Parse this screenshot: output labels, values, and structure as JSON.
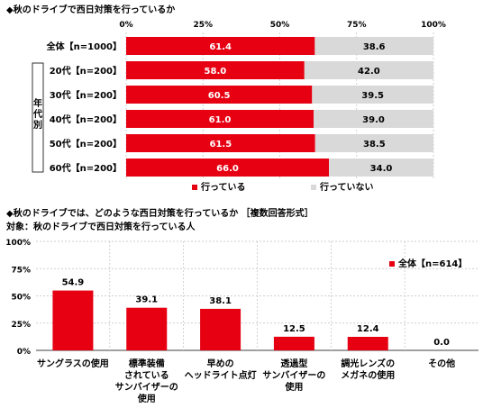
{
  "colors": {
    "red": "#e60012",
    "gray": "#d9d9d9",
    "grid": "#bfbfbf"
  },
  "chart_data": [
    {
      "type": "bar",
      "orientation": "horizontal",
      "stacked": true,
      "title": "◆秋のドライブで西日対策を行っているか",
      "categories": [
        "全体【n=1000】",
        "20代【n=200】",
        "30代【n=200】",
        "40代【n=200】",
        "50代【n=200】",
        "60代【n=200】"
      ],
      "group_label": "年代別",
      "xlim": [
        0,
        100
      ],
      "ticks": [
        "0%",
        "25%",
        "50%",
        "75%",
        "100%"
      ],
      "tick_values": [
        0,
        25,
        50,
        75,
        100
      ],
      "series": [
        {
          "name": "行っている",
          "values": [
            61.4,
            58.0,
            60.5,
            61.0,
            61.5,
            66.0
          ]
        },
        {
          "name": "行っていない",
          "values": [
            38.6,
            42.0,
            39.5,
            39.0,
            38.5,
            34.0
          ]
        }
      ],
      "value_labels": [
        [
          "61.4",
          "58.0",
          "60.5",
          "61.0",
          "61.5",
          "66.0"
        ],
        [
          "38.6",
          "42.0",
          "39.5",
          "39.0",
          "38.5",
          "34.0"
        ]
      ],
      "legend_position": "bottom",
      "grid": true
    },
    {
      "type": "bar",
      "title": "◆秋のドライブでは、どのような西日対策を行っているか ［複数回答形式］",
      "subtitle": "対象：秋のドライブで西日対策を行っている人",
      "categories": [
        "サングラスの使用",
        "標準装備\nされている\nサンバイザーの\n使用",
        "早めの\nヘッドライト点灯",
        "透過型\nサンバイザーの\n使用",
        "調光レンズの\nメガネの使用",
        "その他"
      ],
      "series": [
        {
          "name": "全体【n=614】",
          "values": [
            54.9,
            39.1,
            38.1,
            12.5,
            12.4,
            0.0
          ]
        }
      ],
      "value_labels": [
        "54.9",
        "39.1",
        "38.1",
        "12.5",
        "12.4",
        "0.0"
      ],
      "ylim": [
        0,
        100
      ],
      "ticks": [
        "0%",
        "25%",
        "50%",
        "75%",
        "100%"
      ],
      "tick_values": [
        0,
        25,
        50,
        75,
        100
      ],
      "legend_position": "top-right",
      "grid": true
    }
  ]
}
